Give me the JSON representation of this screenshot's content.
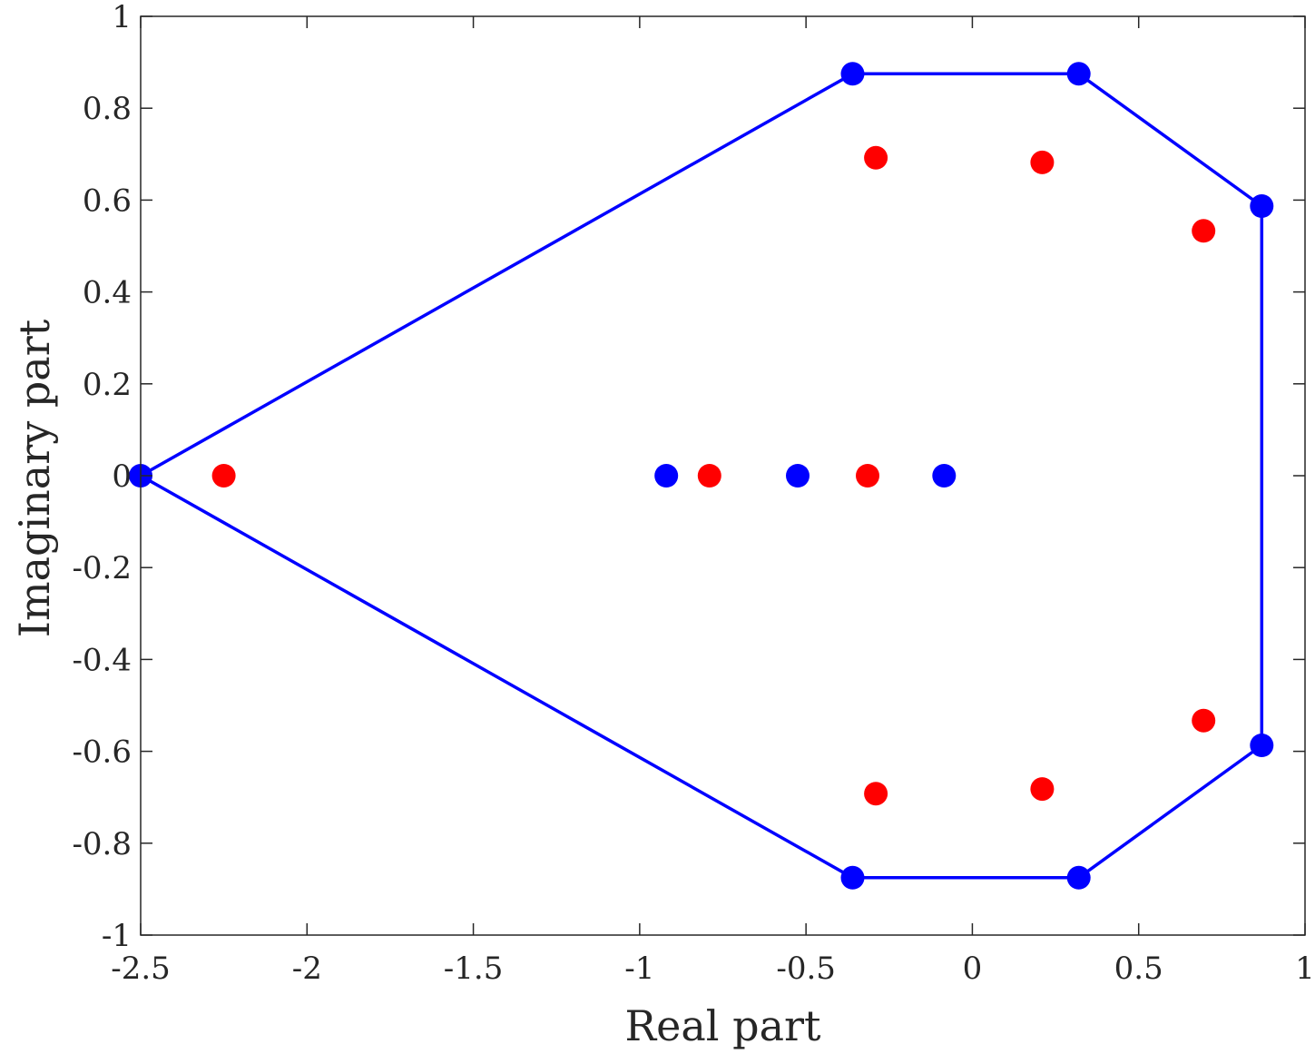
{
  "chart_data": {
    "type": "scatter",
    "title": "",
    "xlabel": "Real part",
    "ylabel": "Imaginary part",
    "xlim": [
      -2.5,
      1
    ],
    "ylim": [
      -1,
      1
    ],
    "xticks": [
      -2.5,
      -2,
      -1.5,
      -1,
      -0.5,
      0,
      0.5,
      1
    ],
    "yticks": [
      -1,
      -0.8,
      -0.6,
      -0.4,
      -0.2,
      0,
      0.2,
      0.4,
      0.6,
      0.8,
      1
    ],
    "grid": false,
    "legend": "none",
    "series": [
      {
        "color": "#0000ff",
        "marker": "filled-circle",
        "points": [
          {
            "x": -2.5,
            "y": 0
          },
          {
            "x": -0.92,
            "y": 0
          },
          {
            "x": -0.525,
            "y": 0
          },
          {
            "x": -0.085,
            "y": 0
          },
          {
            "x": -0.36,
            "y": 0.875
          },
          {
            "x": 0.32,
            "y": 0.875
          },
          {
            "x": 0.87,
            "y": 0.587
          },
          {
            "x": -0.36,
            "y": -0.875
          },
          {
            "x": 0.32,
            "y": -0.875
          },
          {
            "x": 0.87,
            "y": -0.587
          }
        ]
      },
      {
        "color": "#ff0000",
        "marker": "filled-circle",
        "points": [
          {
            "x": -2.25,
            "y": 0
          },
          {
            "x": -0.79,
            "y": 0
          },
          {
            "x": -0.315,
            "y": 0
          },
          {
            "x": -0.29,
            "y": 0.692
          },
          {
            "x": 0.21,
            "y": 0.682
          },
          {
            "x": 0.695,
            "y": 0.533
          },
          {
            "x": -0.29,
            "y": -0.692
          },
          {
            "x": 0.21,
            "y": -0.682
          },
          {
            "x": 0.695,
            "y": -0.533
          }
        ]
      }
    ],
    "outline": {
      "color": "#0000ff",
      "closed": true,
      "points": [
        {
          "x": -2.5,
          "y": 0
        },
        {
          "x": -0.36,
          "y": 0.875
        },
        {
          "x": 0.32,
          "y": 0.875
        },
        {
          "x": 0.87,
          "y": 0.587
        },
        {
          "x": 0.87,
          "y": -0.587
        },
        {
          "x": 0.32,
          "y": -0.875
        },
        {
          "x": -0.36,
          "y": -0.875
        }
      ]
    },
    "axis_color": "#262626"
  }
}
